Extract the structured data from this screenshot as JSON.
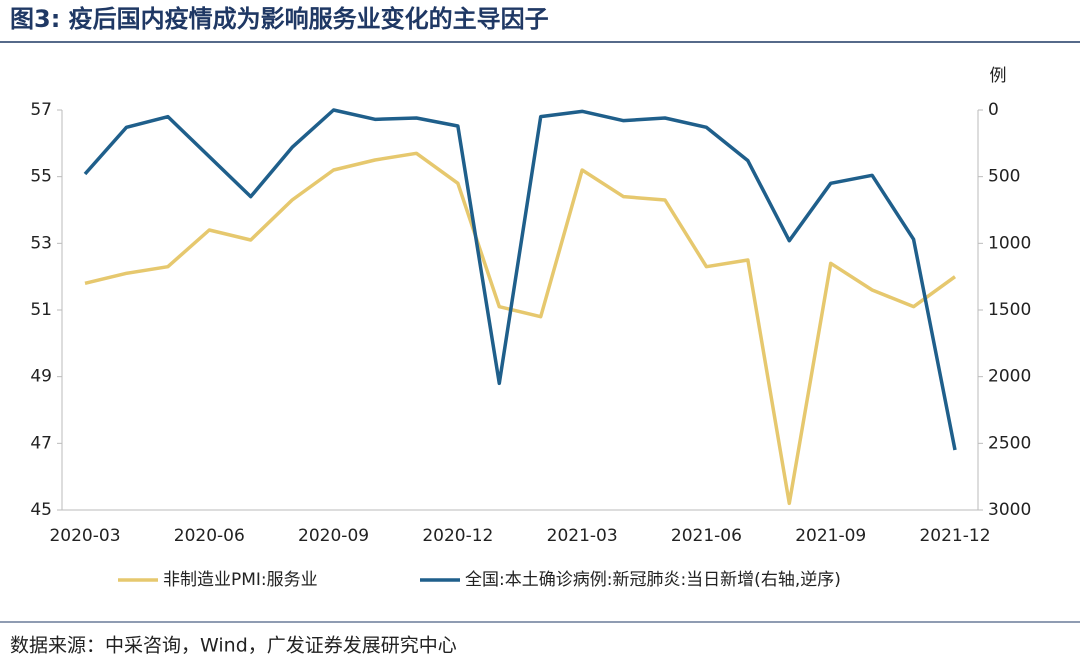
{
  "chart_data": {
    "type": "line",
    "title": "图3: 疫后国内疫情成为影响服务业变化的主导因子",
    "categories": [
      "2020-03",
      null,
      null,
      "2020-06",
      null,
      null,
      "2020-09",
      null,
      null,
      "2020-12",
      null,
      null,
      "2021-03",
      null,
      null,
      "2021-06",
      null,
      null,
      "2021-09",
      null,
      null,
      "2021-12"
    ],
    "series": [
      {
        "name": "非制造业PMI:服务业",
        "color": "#e6c86e",
        "axis": "y",
        "values": [
          51.8,
          52.1,
          52.3,
          53.4,
          53.1,
          54.3,
          55.2,
          55.5,
          55.7,
          54.8,
          51.1,
          50.8,
          55.2,
          54.4,
          54.3,
          52.3,
          52.5,
          45.2,
          52.4,
          51.6,
          51.1,
          52.0
        ]
      },
      {
        "name": "全国:本土确诊病例:新冠肺炎:当日新增(右轴,逆序)",
        "color": "#1f5f8b",
        "axis": "y2",
        "values": [
          480,
          130,
          50,
          350,
          650,
          280,
          0,
          70,
          60,
          120,
          2050,
          50,
          10,
          80,
          60,
          130,
          380,
          980,
          550,
          490,
          970,
          2550
        ]
      }
    ],
    "ylim": [
      45,
      57
    ],
    "yticks": [
      45,
      47,
      49,
      51,
      53,
      55,
      57
    ],
    "y2lim": [
      0,
      3000
    ],
    "y2ticks": [
      0,
      500,
      1000,
      1500,
      2000,
      2500,
      3000
    ],
    "y2_inverted": true,
    "y2label": "例",
    "grid": false,
    "legend": "bottom",
    "source": "数据来源：中采咨询，Wind，广发证券发展研究中心"
  }
}
